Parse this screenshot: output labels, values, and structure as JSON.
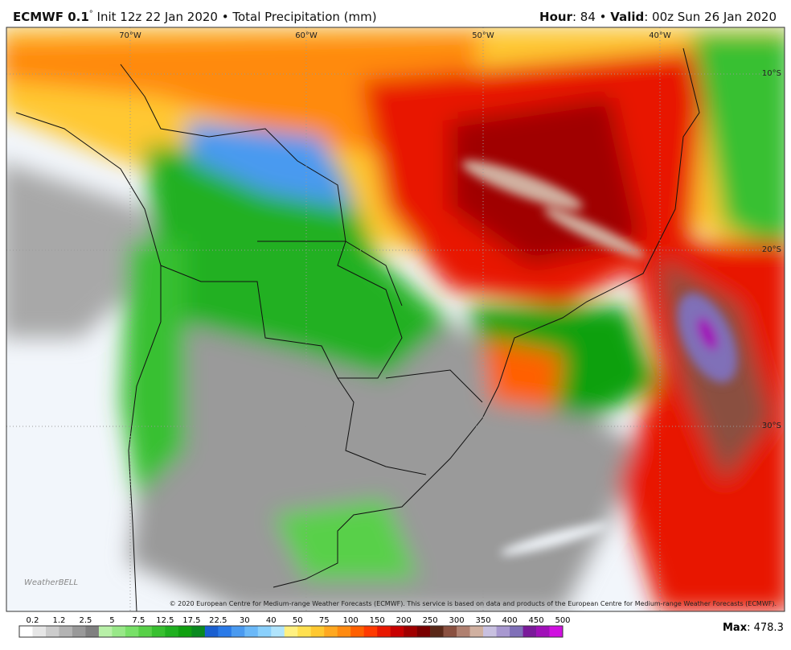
{
  "header": {
    "model": "ECMWF 0.1",
    "degree": "°",
    "init": " Init 12z 22 Jan 2020 • Total Precipitation (mm)",
    "hour_label": "Hour",
    "hour_value": ": 84 • ",
    "valid_label": "Valid",
    "valid_value": ": 00z Sun 26 Jan 2020"
  },
  "map": {
    "lon_labels": [
      "70°W",
      "60°W",
      "50°W",
      "40°W"
    ],
    "lat_labels": [
      "10°S",
      "20°S",
      "30°S"
    ],
    "copyright": "© 2020 European Centre for Medium-range Weather Forecasts (ECMWF). This service is based on data and products of the European Centre for Medium-range Weather Forecasts (ECMWF).",
    "logo": "WeatherBELL"
  },
  "colorbar": {
    "levels": [
      0.2,
      1.2,
      2.5,
      5,
      7.5,
      12.5,
      17.5,
      22.5,
      30,
      40,
      50,
      75,
      100,
      150,
      200,
      250,
      300,
      350,
      400,
      450,
      500
    ],
    "colors": [
      "#ffffff",
      "#e6e6e6",
      "#cccccc",
      "#b3b3b3",
      "#999999",
      "#808080",
      "#b8f0a8",
      "#98e888",
      "#78e068",
      "#58d048",
      "#38c030",
      "#20b020",
      "#10a010",
      "#0a8a20",
      "#1a5fd0",
      "#2a7ae8",
      "#4a9af0",
      "#6ab8f8",
      "#8ad0fc",
      "#b0e4fc",
      "#fff080",
      "#ffe050",
      "#ffc830",
      "#ffa820",
      "#ff8a10",
      "#ff6000",
      "#ff3a00",
      "#e81800",
      "#c80000",
      "#a00000",
      "#7a0000",
      "#5a2818",
      "#8a5040",
      "#b08070",
      "#d0b0a0",
      "#c8c0e0",
      "#a898d0",
      "#8070b8",
      "#7a1a9a",
      "#a010b8",
      "#d010e0"
    ]
  },
  "footer": {
    "max_label": "Max",
    "max_value": ": 478.3"
  }
}
